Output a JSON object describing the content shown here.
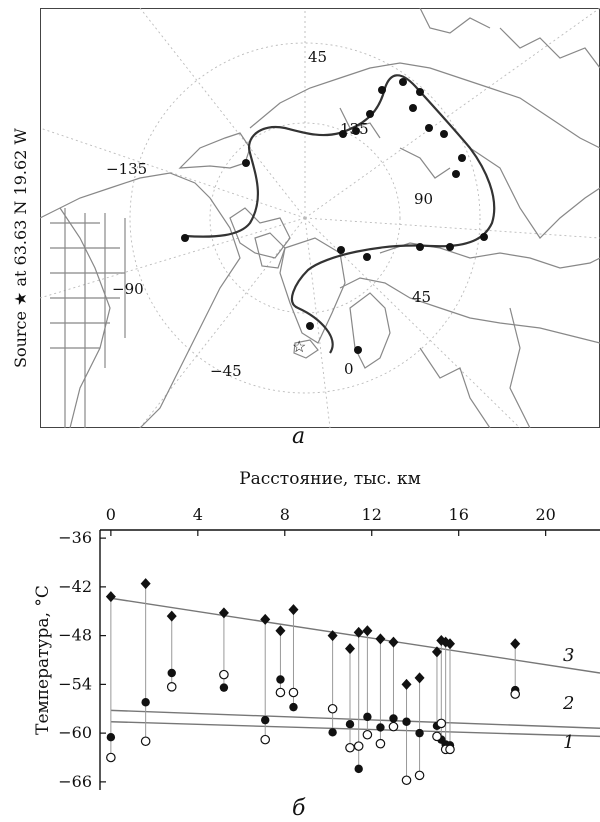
{
  "figure": {
    "panel_a_letter": "а",
    "panel_b_letter": "б",
    "source_label": "Source ★ at 63.63 N  19.62 W"
  },
  "map": {
    "longitude_labels": [
      "45",
      "135",
      "−135",
      "90",
      "−90",
      "45",
      "−45",
      "0"
    ],
    "land_color": "#ffffff",
    "coast_color": "#888888",
    "grid_color": "#bbbbbb"
  },
  "chart_data": {
    "type": "scatter",
    "xlabel": "Расстояние, тыс. км",
    "ylabel": "Температура, °C",
    "xlim": [
      -0.5,
      22.5
    ],
    "ylim": [
      -67,
      -35
    ],
    "xticks": [
      0,
      4,
      8,
      12,
      16,
      20
    ],
    "yticks": [
      -36,
      -42,
      -48,
      -54,
      -60,
      -66
    ],
    "x_axis_position": "top",
    "line_labels": [
      "3",
      "2",
      "1"
    ],
    "series": [
      {
        "marker": "diamond-filled",
        "points": [
          [
            0,
            -43.2
          ],
          [
            1.6,
            -41.6
          ],
          [
            2.8,
            -45.6
          ],
          [
            5.2,
            -45.2
          ],
          [
            7.1,
            -46.0
          ],
          [
            7.8,
            -47.4
          ],
          [
            8.4,
            -44.8
          ],
          [
            10.2,
            -48.0
          ],
          [
            11.0,
            -49.6
          ],
          [
            11.4,
            -47.6
          ],
          [
            11.8,
            -47.4
          ],
          [
            12.4,
            -48.4
          ],
          [
            13.0,
            -48.8
          ],
          [
            13.6,
            -54.0
          ],
          [
            14.2,
            -53.2
          ],
          [
            15.0,
            -50.0
          ],
          [
            15.2,
            -48.6
          ],
          [
            15.4,
            -48.8
          ],
          [
            15.6,
            -49.0
          ],
          [
            18.6,
            -49.0
          ]
        ]
      },
      {
        "marker": "circle-filled",
        "points": [
          [
            0,
            -60.5
          ],
          [
            1.6,
            -56.2
          ],
          [
            2.8,
            -52.6
          ],
          [
            5.2,
            -54.4
          ],
          [
            7.1,
            -58.4
          ],
          [
            7.8,
            -53.4
          ],
          [
            8.4,
            -56.8
          ],
          [
            10.2,
            -59.9
          ],
          [
            11.0,
            -58.9
          ],
          [
            11.4,
            -64.4
          ],
          [
            11.8,
            -58.0
          ],
          [
            12.4,
            -59.3
          ],
          [
            13.0,
            -58.2
          ],
          [
            13.6,
            -58.6
          ],
          [
            14.2,
            -60.0
          ],
          [
            15.0,
            -59.1
          ],
          [
            15.2,
            -60.8
          ],
          [
            15.4,
            -61.4
          ],
          [
            15.6,
            -61.5
          ],
          [
            18.6,
            -54.7
          ]
        ]
      },
      {
        "marker": "circle-open",
        "points": [
          [
            0,
            -63.0
          ],
          [
            1.6,
            -61.0
          ],
          [
            2.8,
            -54.3
          ],
          [
            5.2,
            -52.8
          ],
          [
            7.1,
            -60.8
          ],
          [
            7.8,
            -55.0
          ],
          [
            8.4,
            -55.0
          ],
          [
            10.2,
            -57.0
          ],
          [
            11.0,
            -61.8
          ],
          [
            11.4,
            -61.6
          ],
          [
            11.8,
            -60.2
          ],
          [
            12.4,
            -61.3
          ],
          [
            13.0,
            -59.2
          ],
          [
            13.6,
            -65.8
          ],
          [
            14.2,
            -65.2
          ],
          [
            15.0,
            -60.4
          ],
          [
            15.2,
            -58.8
          ],
          [
            15.4,
            -62.0
          ],
          [
            15.6,
            -62.0
          ],
          [
            18.6,
            -55.2
          ]
        ]
      }
    ],
    "trend_lines": [
      {
        "label": "3",
        "from": [
          0,
          -43.4
        ],
        "to": [
          22.5,
          -52.6
        ]
      },
      {
        "label": "2",
        "from": [
          0,
          -57.2
        ],
        "to": [
          22.5,
          -59.4
        ]
      },
      {
        "label": "1",
        "from": [
          0,
          -58.6
        ],
        "to": [
          22.5,
          -60.4
        ]
      }
    ]
  }
}
